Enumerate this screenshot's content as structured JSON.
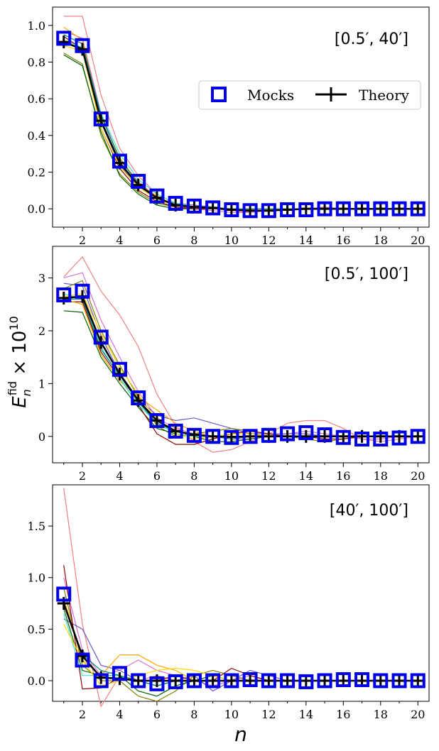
{
  "chart_data": {
    "type": "line",
    "xlabel": "n",
    "ylabel": "E_n^fid × 10^10",
    "x": [
      1,
      2,
      3,
      4,
      5,
      6,
      7,
      8,
      9,
      10,
      11,
      12,
      13,
      14,
      15,
      16,
      17,
      18,
      19,
      20
    ],
    "xtick_labels": [
      "2",
      "4",
      "6",
      "8",
      "10",
      "12",
      "14",
      "16",
      "18",
      "20"
    ],
    "legend": {
      "mocks": "Mocks",
      "theory": "Theory",
      "placement": "upper-right of top panel"
    },
    "colors": {
      "mocks": "#0000e6",
      "theory": "#000000"
    },
    "mock_line_colors": [
      "#f08080",
      "#da70d6",
      "#6a5acd",
      "#808000",
      "#006400",
      "#8b0000",
      "#ffa500",
      "#40e0d0",
      "#ffd700",
      "#008080"
    ],
    "panels": [
      {
        "range_label": "[0.5′, 40′]",
        "ylim": [
          -0.1,
          1.1
        ],
        "yticks": [
          0,
          0.2,
          0.4,
          0.6,
          0.8,
          1.0
        ],
        "ytick_labels": [
          "0.0",
          "0.2",
          "0.4",
          "0.6",
          "0.8",
          "1.0"
        ],
        "mocks": [
          0.93,
          0.89,
          0.49,
          0.26,
          0.15,
          0.07,
          0.03,
          0.015,
          0.005,
          -0.005,
          -0.01,
          -0.01,
          -0.005,
          -0.005,
          0.0,
          0.0,
          0.0,
          0.0,
          0.0,
          0.0
        ],
        "theory": [
          0.91,
          0.87,
          0.48,
          0.25,
          0.13,
          0.06,
          0.02,
          0.01,
          0.005,
          -0.005,
          -0.01,
          -0.01,
          -0.005,
          0.0,
          0.0,
          0.0,
          0.0,
          0.0,
          0.0,
          0.0
        ],
        "mock_lines": [
          [
            1.05,
            1.05,
            0.62,
            0.33,
            0.18,
            0.08,
            0.03,
            0.01,
            0.0,
            -0.01,
            -0.02,
            -0.01,
            0.0,
            0.0,
            0.0,
            0.0,
            0.0,
            0.0,
            0.0,
            0.0
          ],
          [
            0.97,
            0.93,
            0.52,
            0.27,
            0.15,
            0.06,
            0.02,
            0.0,
            -0.01,
            -0.02,
            -0.02,
            -0.01,
            0.0,
            0.0,
            0.01,
            0.0,
            0.0,
            0.0,
            0.0,
            0.0
          ],
          [
            0.9,
            0.88,
            0.47,
            0.24,
            0.12,
            0.06,
            0.03,
            0.02,
            0.01,
            0.0,
            -0.01,
            -0.01,
            0.0,
            0.0,
            0.0,
            0.0,
            0.0,
            0.0,
            0.0,
            0.0
          ],
          [
            0.85,
            0.79,
            0.4,
            0.19,
            0.09,
            0.03,
            0.01,
            0.0,
            0.0,
            0.0,
            0.0,
            0.0,
            0.0,
            0.0,
            0.0,
            0.0,
            0.0,
            0.0,
            0.0,
            0.0
          ],
          [
            0.84,
            0.78,
            0.42,
            0.18,
            0.08,
            0.02,
            0.0,
            0.0,
            0.0,
            0.0,
            0.0,
            0.0,
            0.0,
            0.0,
            0.0,
            0.0,
            0.0,
            0.0,
            0.0,
            0.0
          ],
          [
            0.94,
            0.87,
            0.44,
            0.22,
            0.1,
            0.04,
            0.01,
            0.0,
            0.0,
            0.0,
            0.0,
            0.0,
            0.0,
            0.0,
            0.0,
            0.0,
            0.0,
            0.0,
            0.0,
            0.0
          ],
          [
            0.99,
            0.92,
            0.5,
            0.28,
            0.14,
            0.07,
            0.02,
            0.01,
            0.0,
            0.0,
            0.0,
            0.0,
            0.0,
            0.0,
            0.0,
            0.0,
            0.0,
            0.0,
            0.0,
            0.0
          ],
          [
            0.92,
            0.88,
            0.52,
            0.3,
            0.16,
            0.08,
            0.03,
            0.01,
            0.01,
            0.0,
            0.0,
            0.0,
            0.0,
            0.0,
            0.0,
            0.0,
            0.0,
            0.0,
            0.0,
            0.0
          ],
          [
            0.89,
            0.86,
            0.44,
            0.23,
            0.12,
            0.05,
            0.02,
            0.01,
            0.0,
            0.0,
            0.0,
            0.0,
            0.0,
            0.0,
            0.0,
            0.0,
            0.0,
            0.0,
            0.0,
            0.0
          ],
          [
            0.95,
            0.9,
            0.51,
            0.27,
            0.14,
            0.06,
            0.02,
            0.01,
            0.0,
            0.0,
            0.0,
            0.0,
            0.0,
            0.0,
            0.0,
            0.0,
            0.0,
            0.0,
            0.0,
            0.0
          ]
        ]
      },
      {
        "range_label": "[0.5′, 100′]",
        "ylim": [
          -0.5,
          3.6
        ],
        "yticks": [
          0,
          1,
          2,
          3
        ],
        "ytick_labels": [
          "0",
          "1",
          "2",
          "3"
        ],
        "mocks": [
          2.68,
          2.75,
          1.88,
          1.27,
          0.73,
          0.3,
          0.1,
          0.02,
          0.0,
          -0.02,
          0.0,
          0.02,
          0.05,
          0.07,
          0.03,
          -0.02,
          -0.05,
          -0.05,
          -0.03,
          0.0
        ],
        "theory": [
          2.62,
          2.65,
          1.78,
          1.18,
          0.68,
          0.3,
          0.1,
          0.03,
          0.0,
          -0.01,
          0.0,
          0.0,
          0.0,
          0.0,
          0.0,
          0.0,
          0.0,
          0.0,
          0.0,
          0.0
        ],
        "mock_lines": [
          [
            3.02,
            3.4,
            2.75,
            2.3,
            1.7,
            0.8,
            0.2,
            -0.1,
            -0.3,
            -0.25,
            -0.1,
            0.05,
            0.25,
            0.3,
            0.3,
            0.15,
            -0.05,
            -0.1,
            -0.05,
            0.0
          ],
          [
            3.0,
            3.1,
            2.2,
            1.5,
            0.85,
            0.35,
            0.15,
            0.05,
            0.0,
            -0.05,
            -0.05,
            0.0,
            0.05,
            0.1,
            0.05,
            0.0,
            -0.05,
            -0.05,
            0.0,
            0.0
          ],
          [
            2.9,
            2.85,
            1.9,
            1.2,
            0.7,
            0.4,
            0.3,
            0.35,
            0.25,
            0.15,
            0.05,
            0.05,
            0.05,
            0.05,
            0.0,
            0.0,
            0.0,
            0.0,
            0.0,
            0.0
          ],
          [
            2.8,
            2.95,
            2.0,
            1.35,
            0.75,
            0.2,
            0.0,
            0.05,
            0.1,
            0.15,
            0.1,
            0.05,
            0.0,
            -0.05,
            -0.1,
            -0.05,
            0.0,
            0.0,
            0.0,
            0.0
          ],
          [
            2.38,
            2.35,
            1.5,
            1.0,
            0.55,
            0.15,
            0.05,
            0.0,
            -0.1,
            -0.1,
            -0.05,
            0.0,
            0.0,
            0.0,
            0.0,
            0.0,
            0.0,
            0.0,
            0.0,
            0.0
          ],
          [
            2.55,
            2.55,
            1.6,
            1.1,
            0.6,
            0.05,
            -0.15,
            -0.15,
            -0.05,
            0.05,
            0.1,
            0.05,
            0.0,
            0.0,
            -0.05,
            -0.05,
            0.0,
            0.0,
            0.0,
            0.0
          ],
          [
            2.6,
            2.5,
            1.55,
            1.05,
            0.75,
            0.5,
            0.25,
            0.1,
            0.0,
            0.0,
            0.0,
            0.0,
            0.0,
            0.0,
            0.0,
            0.0,
            0.0,
            0.0,
            0.0,
            0.0
          ],
          [
            2.7,
            2.6,
            1.7,
            1.1,
            0.6,
            0.25,
            0.05,
            0.0,
            0.0,
            0.0,
            0.0,
            0.0,
            0.0,
            0.0,
            0.0,
            0.0,
            0.0,
            0.0,
            0.0,
            0.0
          ],
          [
            2.65,
            2.7,
            1.95,
            1.3,
            0.8,
            0.3,
            0.05,
            -0.05,
            0.0,
            0.05,
            0.05,
            0.0,
            0.0,
            0.0,
            0.0,
            0.0,
            0.0,
            0.0,
            0.0,
            0.0
          ],
          [
            2.6,
            2.6,
            1.65,
            1.15,
            0.65,
            0.25,
            0.1,
            0.05,
            0.0,
            -0.05,
            0.0,
            0.0,
            0.0,
            0.0,
            0.0,
            0.0,
            0.0,
            0.0,
            0.0,
            0.0
          ]
        ]
      },
      {
        "range_label": "[40′, 100′]",
        "ylim": [
          -0.2,
          1.9
        ],
        "yticks": [
          0,
          0.5,
          1.0,
          1.5
        ],
        "ytick_labels": [
          "0.0",
          "0.5",
          "1.0",
          "1.5"
        ],
        "mocks": [
          0.84,
          0.2,
          0.0,
          0.07,
          0.0,
          -0.03,
          -0.01,
          0.0,
          0.0,
          0.0,
          0.01,
          0.0,
          0.0,
          -0.01,
          0.0,
          0.01,
          0.01,
          0.0,
          0.0,
          0.0
        ],
        "theory": [
          0.75,
          0.24,
          0.03,
          0.02,
          0.0,
          0.0,
          0.0,
          0.0,
          0.0,
          0.0,
          0.0,
          0.0,
          0.0,
          0.0,
          0.0,
          0.0,
          0.0,
          0.0,
          0.0,
          0.0
        ],
        "mock_lines": [
          [
            1.87,
            0.55,
            -0.25,
            0.05,
            0.0,
            0.05,
            0.0,
            0.0,
            0.0,
            0.0,
            0.0,
            0.0,
            0.0,
            0.0,
            0.0,
            0.0,
            0.0,
            0.0,
            0.0,
            0.0
          ],
          [
            1.0,
            0.3,
            0.05,
            0.1,
            0.2,
            0.1,
            0.05,
            0.0,
            -0.05,
            0.0,
            0.05,
            0.0,
            0.0,
            0.0,
            0.0,
            0.0,
            0.0,
            0.0,
            0.0,
            0.0
          ],
          [
            0.6,
            0.5,
            0.15,
            0.1,
            0.0,
            -0.05,
            0.0,
            0.05,
            -0.1,
            0.0,
            0.1,
            0.05,
            0.0,
            0.0,
            0.0,
            0.0,
            0.0,
            0.0,
            0.0,
            0.0
          ],
          [
            0.9,
            0.15,
            0.0,
            0.0,
            -0.15,
            -0.2,
            -0.1,
            0.05,
            0.1,
            0.05,
            0.0,
            0.0,
            0.0,
            0.0,
            0.0,
            0.0,
            0.0,
            0.0,
            0.0,
            0.0
          ],
          [
            0.7,
            0.1,
            0.05,
            0.05,
            -0.1,
            -0.15,
            -0.05,
            0.0,
            0.05,
            0.0,
            0.0,
            0.0,
            0.0,
            0.0,
            0.0,
            0.0,
            0.0,
            0.0,
            0.0,
            0.0
          ],
          [
            1.12,
            -0.08,
            -0.07,
            0.03,
            0.0,
            0.0,
            0.05,
            0.0,
            0.0,
            0.12,
            0.05,
            0.0,
            0.0,
            0.0,
            0.0,
            0.0,
            0.0,
            0.0,
            0.0,
            0.0
          ],
          [
            0.8,
            0.2,
            0.05,
            0.25,
            0.25,
            0.15,
            0.1,
            0.0,
            0.0,
            0.0,
            0.0,
            0.0,
            0.0,
            0.0,
            0.0,
            0.0,
            0.0,
            0.0,
            0.0,
            0.0
          ],
          [
            0.65,
            0.05,
            0.05,
            0.05,
            0.0,
            0.0,
            0.0,
            0.0,
            0.0,
            0.0,
            0.0,
            0.0,
            0.0,
            0.0,
            0.0,
            0.0,
            0.0,
            0.0,
            0.0,
            0.0
          ],
          [
            0.55,
            0.2,
            -0.05,
            0.0,
            0.05,
            0.1,
            0.12,
            0.1,
            0.05,
            0.0,
            0.0,
            0.0,
            0.0,
            0.0,
            0.0,
            0.0,
            0.0,
            0.0,
            0.0,
            0.0
          ],
          [
            0.75,
            0.25,
            0.1,
            0.05,
            0.0,
            -0.05,
            0.0,
            0.0,
            0.0,
            0.0,
            0.0,
            0.0,
            0.0,
            0.0,
            0.0,
            0.0,
            0.0,
            0.0,
            0.0,
            0.0
          ]
        ]
      }
    ]
  }
}
